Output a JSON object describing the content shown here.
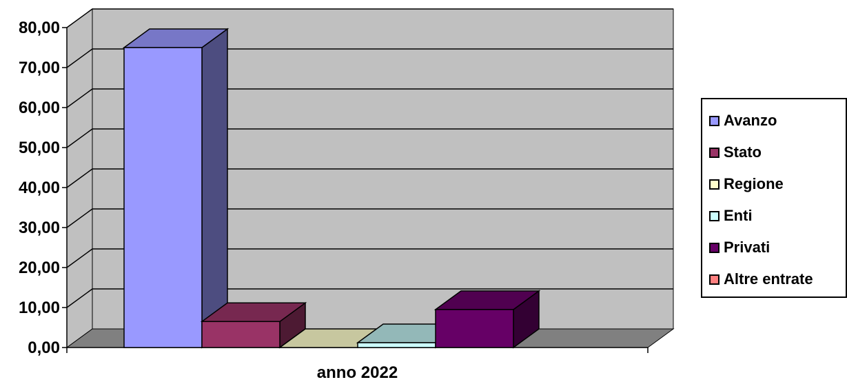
{
  "chart_data": {
    "type": "bar",
    "categories": [
      "anno 2022"
    ],
    "series": [
      {
        "name": "Avanzo",
        "values": [
          75.0
        ],
        "color": "#9999ff"
      },
      {
        "name": "Stato",
        "values": [
          6.5
        ],
        "color": "#993366"
      },
      {
        "name": "Regione",
        "values": [
          0.0
        ],
        "color": "#ffffcc"
      },
      {
        "name": "Enti",
        "values": [
          1.2
        ],
        "color": "#ccffff"
      },
      {
        "name": "Privati",
        "values": [
          9.5
        ],
        "color": "#660066"
      },
      {
        "name": "Altre entrate",
        "values": [
          0.0
        ],
        "color": "#ff8080"
      }
    ],
    "y_ticks": [
      "0,00",
      "10,00",
      "20,00",
      "30,00",
      "40,00",
      "50,00",
      "60,00",
      "70,00",
      "80,00"
    ],
    "ylim": [
      0,
      80
    ],
    "grid": true,
    "legend": "right",
    "three_d": true,
    "colors": {
      "wall": "#c0c0c0",
      "floor": "#808080"
    }
  }
}
